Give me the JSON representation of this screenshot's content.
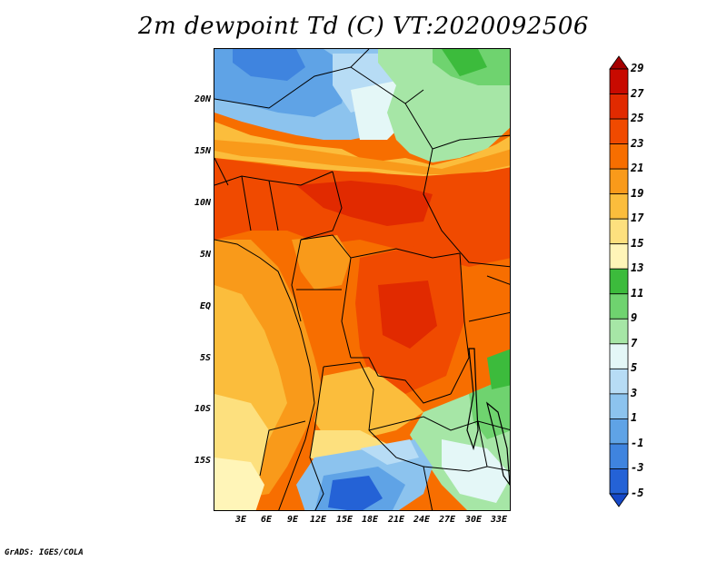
{
  "title": "2m dewpoint Td (C) VT:2020092506",
  "credit": "GrADS: IGES/COLA",
  "map": {
    "region": "Central Africa",
    "lat_labels": [
      "20N",
      "15N",
      "10N",
      "5N",
      "EQ",
      "5S",
      "10S",
      "15S"
    ],
    "lon_labels": [
      "3E",
      "6E",
      "9E",
      "12E",
      "15E",
      "18E",
      "21E",
      "24E",
      "27E",
      "30E",
      "33E"
    ]
  },
  "colorbar": {
    "labels": [
      "29",
      "27",
      "25",
      "23",
      "21",
      "19",
      "17",
      "15",
      "13",
      "11",
      "9",
      "7",
      "5",
      "3",
      "1",
      "-1",
      "-3",
      "-5"
    ],
    "colors": [
      "#a50000",
      "#c80a00",
      "#e12a00",
      "#f04a00",
      "#f76e00",
      "#f99a1a",
      "#fbbd3c",
      "#fde07e",
      "#fff5b8",
      "#3cbb3c",
      "#6fd36f",
      "#a6e6a6",
      "#e4f7f7",
      "#b7dcf5",
      "#8cc3ee",
      "#5fa3e6",
      "#3f84df",
      "#2462d6",
      "#1548c8"
    ]
  }
}
